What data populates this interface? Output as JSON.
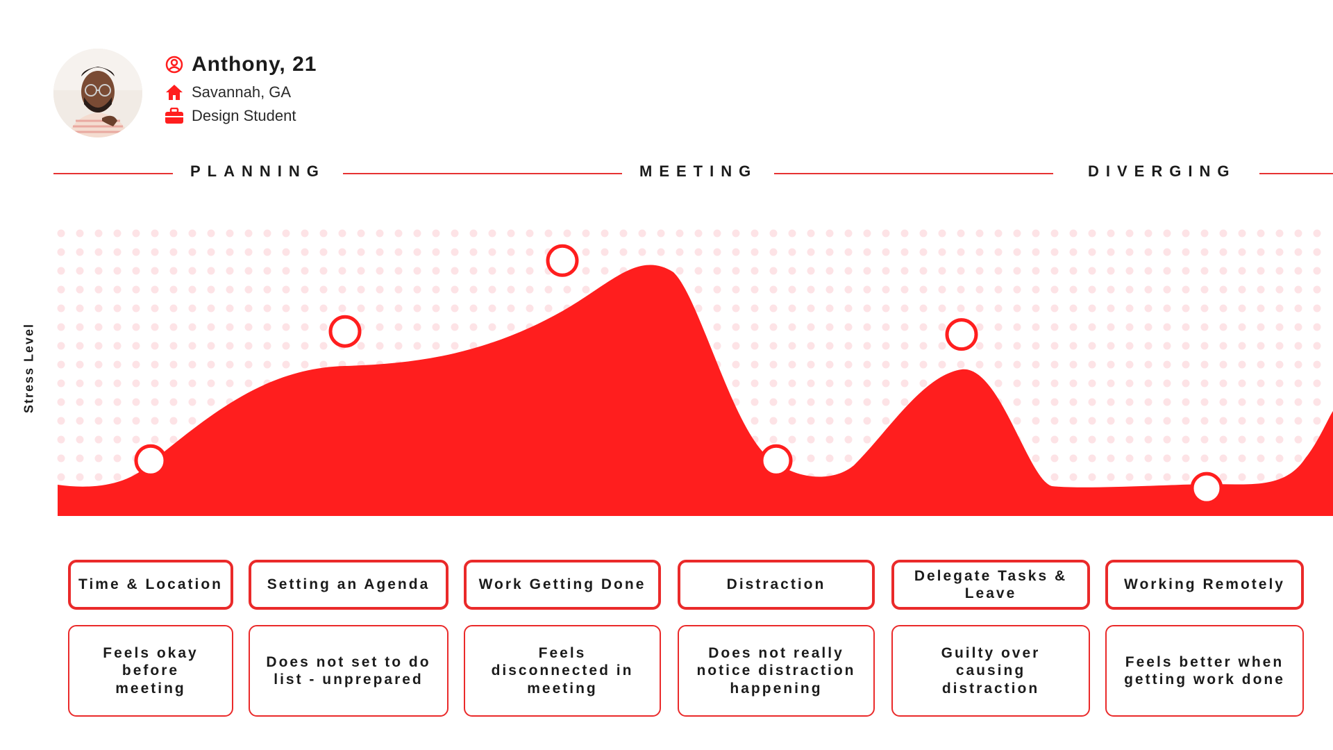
{
  "profile": {
    "name": "Anthony, 21",
    "location": "Savannah, GA",
    "occupation": "Design Student",
    "icons": [
      "user-circle-icon",
      "home-icon",
      "briefcase-icon"
    ]
  },
  "phases": [
    "PLANNING",
    "MEETING",
    "DIVERGING"
  ],
  "y_axis_label": "Stress Level",
  "colors": {
    "accent": "#ff1e1e",
    "dots": "#fde3e6",
    "card_border": "#ea2a2a"
  },
  "stages": [
    {
      "title": "Time & Location",
      "description": "Feels okay before meeting"
    },
    {
      "title": "Setting an Agenda",
      "description": "Does not set to do list - unprepared"
    },
    {
      "title": "Work Getting Done",
      "description": "Feels disconnected in meeting"
    },
    {
      "title": "Distraction",
      "description": "Does not really notice distraction happening"
    },
    {
      "title": "Delegate Tasks & Leave",
      "description": "Guilty over causing distraction"
    },
    {
      "title": "Working Remotely",
      "description": "Feels better when getting work done"
    }
  ],
  "chart_data": {
    "type": "area",
    "ylabel": "Stress Level",
    "x": [
      "Time & Location",
      "Setting an Agenda",
      "Work Getting Done",
      "Distraction",
      "Delegate Tasks & Leave",
      "Working Remotely"
    ],
    "values": [
      0.18,
      0.6,
      0.83,
      0.18,
      0.59,
      0.09
    ],
    "ylim": [
      0,
      1
    ]
  }
}
